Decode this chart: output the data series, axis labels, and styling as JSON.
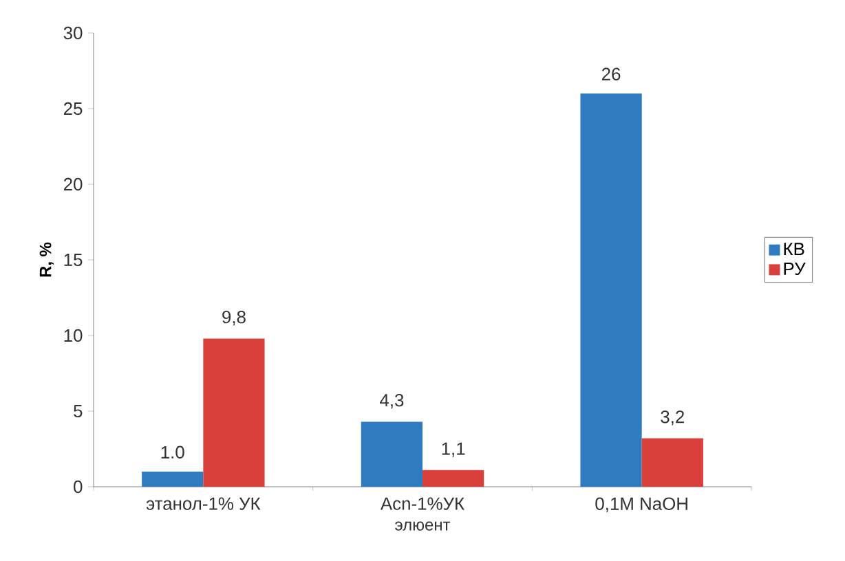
{
  "chart_data": {
    "type": "bar",
    "xlabel": "элюент",
    "ylabel": "R, %",
    "categories": [
      "этанол-1% УК",
      "Acn-1%УК",
      "0,1M NaOH"
    ],
    "series": [
      {
        "name": "КВ",
        "color": "#2f7bbf",
        "values": [
          1.0,
          4.3,
          26
        ],
        "value_labels": [
          "1.0",
          "4,3",
          "26"
        ]
      },
      {
        "name": "РУ",
        "color": "#d9403c",
        "values": [
          9.8,
          1.1,
          3.2
        ],
        "value_labels": [
          "9,8",
          "1,1",
          "3,2"
        ]
      }
    ],
    "ylim": [
      0,
      30
    ],
    "yticks": [
      0,
      5,
      10,
      15,
      20,
      25,
      30
    ],
    "legend": "right"
  }
}
